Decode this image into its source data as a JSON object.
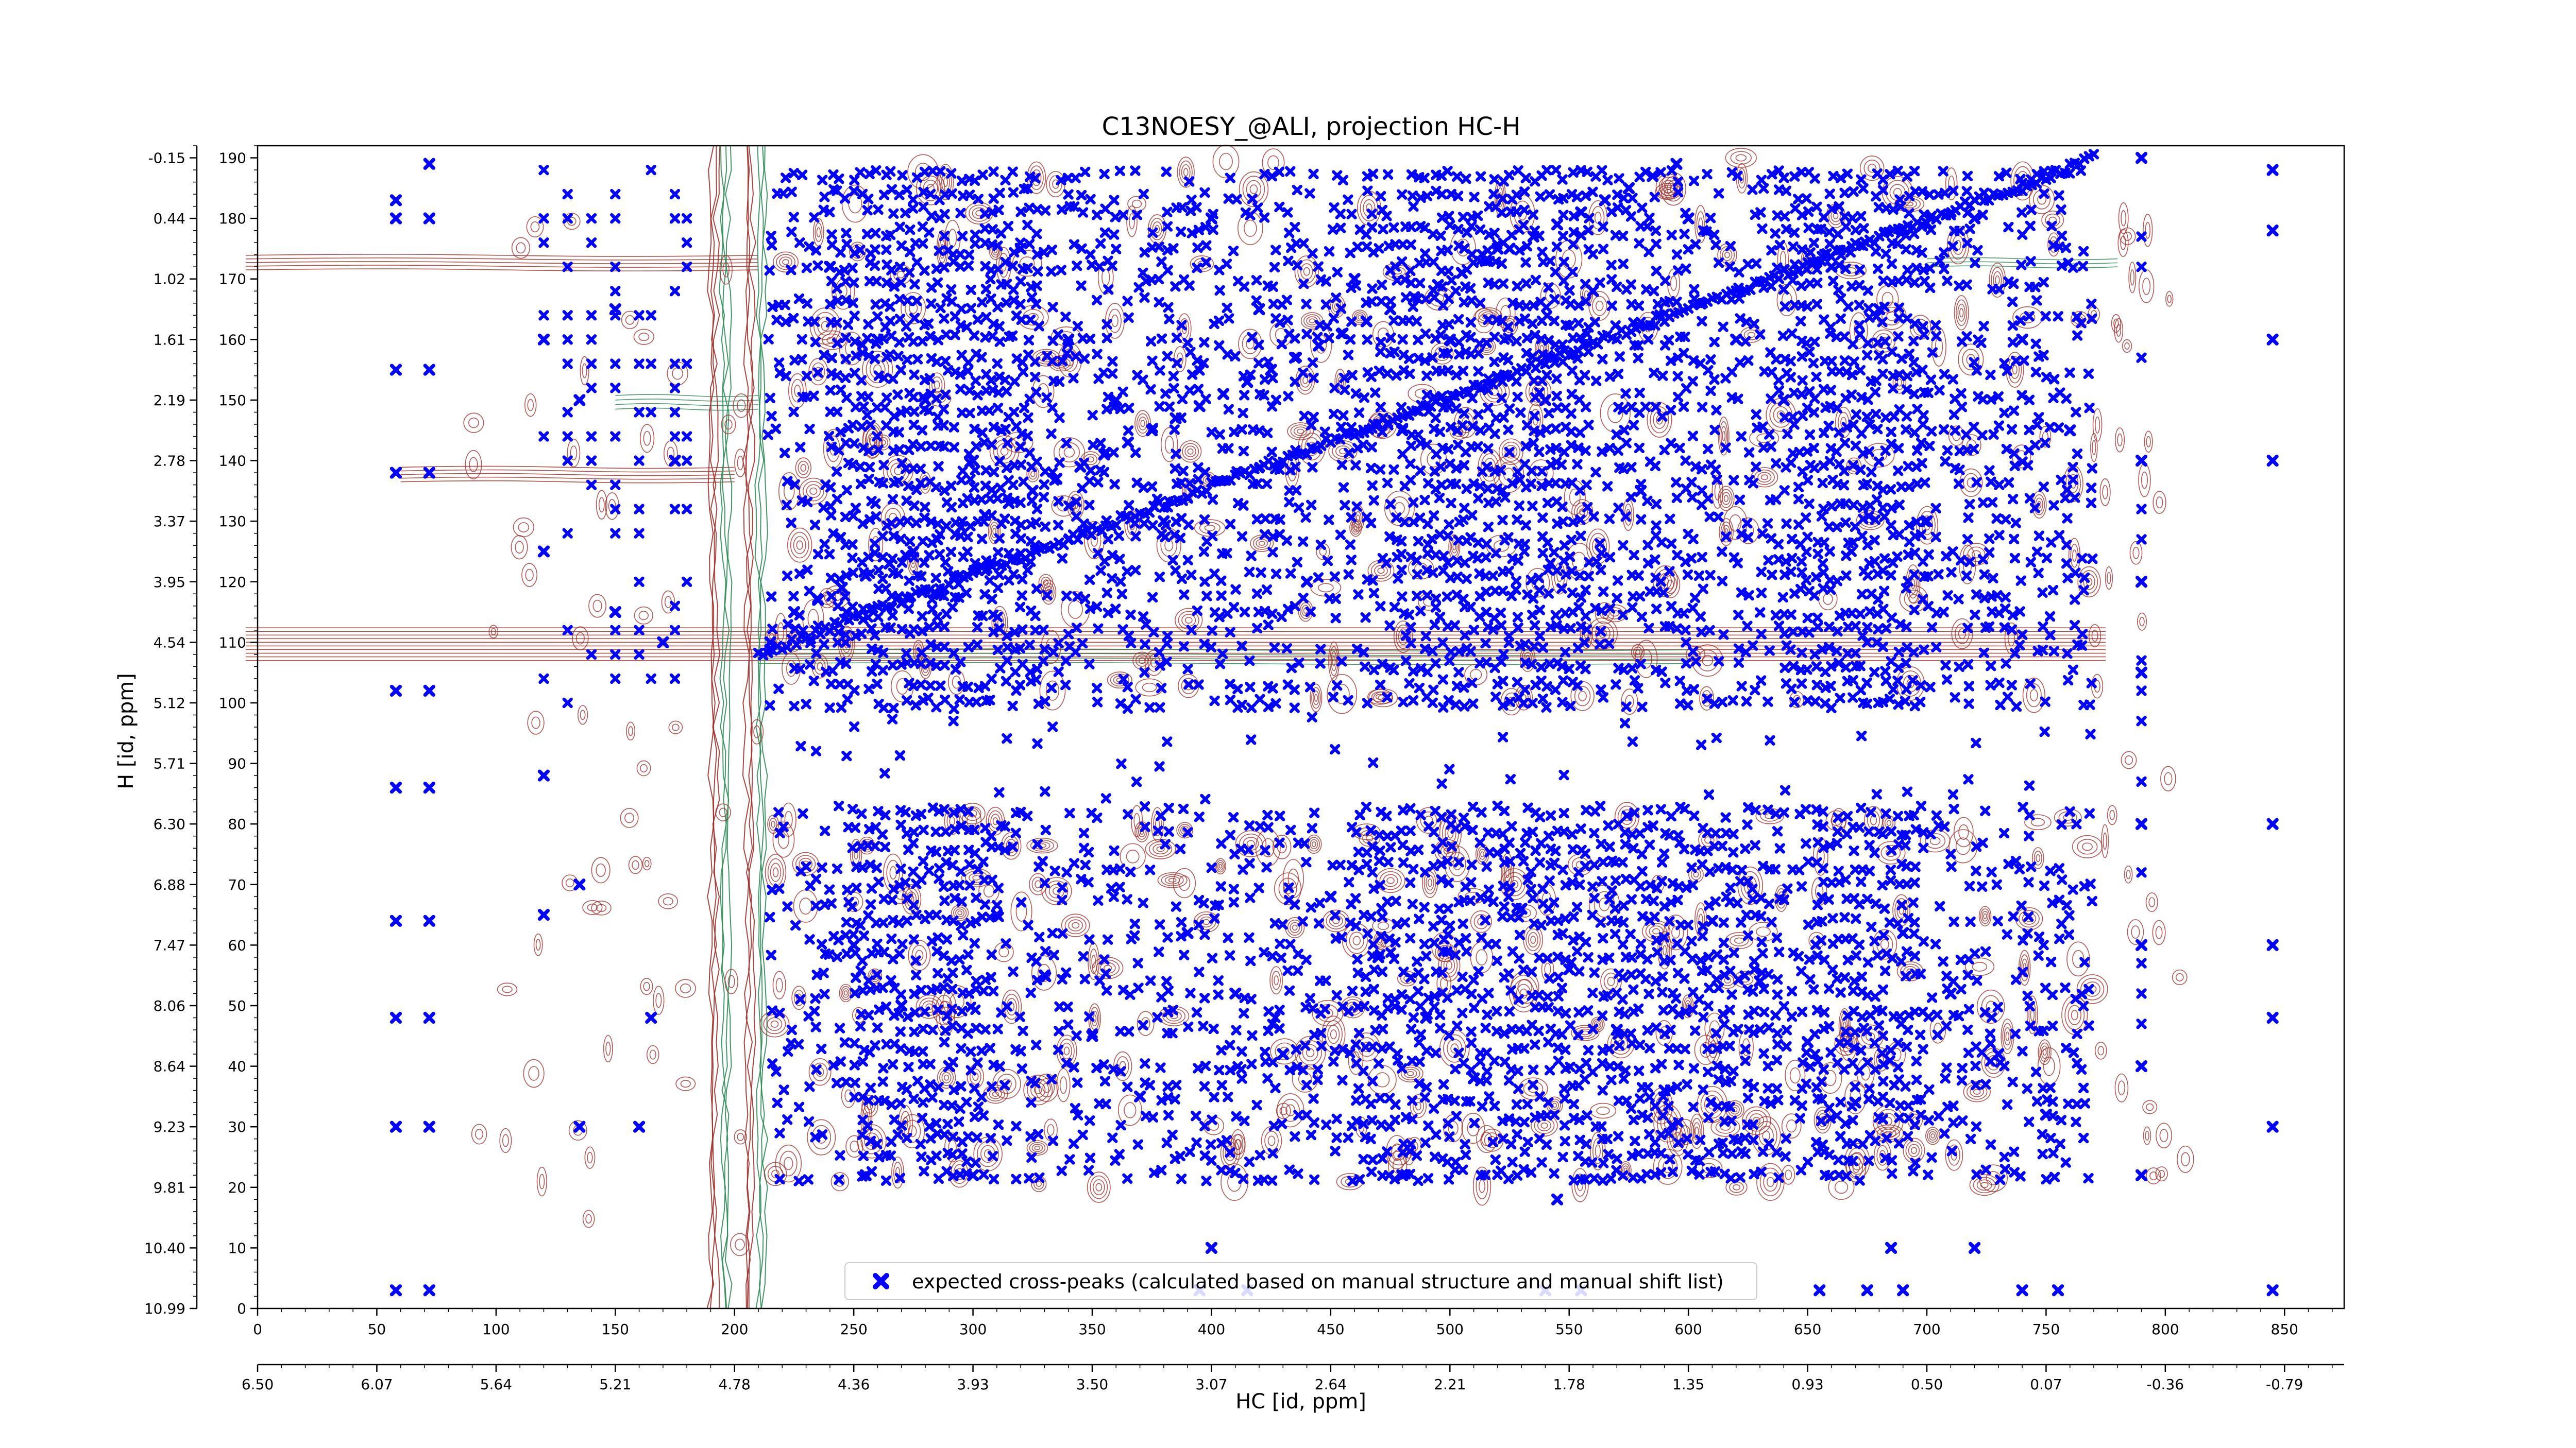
{
  "chart_data": {
    "type": "scatter",
    "title": "C13NOESY_@ALI, projection HC-H",
    "xlabel": "HC [id, ppm]",
    "ylabel": "H [id, ppm]",
    "xlim": [
      0,
      875
    ],
    "ylim": [
      0,
      192
    ],
    "x_ticks": [
      0,
      50,
      100,
      150,
      200,
      250,
      300,
      350,
      400,
      450,
      500,
      550,
      600,
      650,
      700,
      750,
      800,
      850
    ],
    "x_ppm_ticks": [
      "6.50",
      "6.07",
      "5.64",
      "5.21",
      "4.78",
      "4.36",
      "3.93",
      "3.50",
      "3.07",
      "2.64",
      "2.21",
      "1.78",
      "1.35",
      "0.93",
      "0.50",
      "0.07",
      "-0.36",
      "-0.79"
    ],
    "y_ticks": [
      0,
      10,
      20,
      30,
      40,
      50,
      60,
      70,
      80,
      90,
      100,
      110,
      120,
      130,
      140,
      150,
      160,
      170,
      180,
      190
    ],
    "y_ppm_ticks": [
      "10.99",
      "10.40",
      "9.81",
      "9.23",
      "8.64",
      "8.06",
      "7.47",
      "6.88",
      "6.30",
      "5.71",
      "5.12",
      "4.54",
      "3.95",
      "3.37",
      "2.78",
      "2.19",
      "1.61",
      "1.02",
      "0.44",
      "-0.15"
    ],
    "grid": false,
    "legend_position": "bottom-center",
    "series": [
      {
        "name": "expected cross-peaks (calculated based on manual structure and manual shift list)",
        "marker": "X",
        "color": "#0000ff",
        "points": [
          [
            58,
            3
          ],
          [
            72,
            3
          ],
          [
            58,
            30
          ],
          [
            72,
            30
          ],
          [
            58,
            48
          ],
          [
            72,
            48
          ],
          [
            58,
            64
          ],
          [
            72,
            64
          ],
          [
            58,
            86
          ],
          [
            72,
            86
          ],
          [
            58,
            102
          ],
          [
            72,
            102
          ],
          [
            58,
            138
          ],
          [
            72,
            138
          ],
          [
            58,
            155
          ],
          [
            72,
            155
          ],
          [
            58,
            180
          ],
          [
            72,
            180
          ],
          [
            72,
            189
          ],
          [
            58,
            183
          ],
          [
            120,
            65
          ],
          [
            120,
            88
          ],
          [
            120,
            125
          ],
          [
            120,
            160
          ],
          [
            135,
            30
          ],
          [
            135,
            70
          ],
          [
            135,
            150
          ],
          [
            150,
            115
          ],
          [
            150,
            165
          ],
          [
            160,
            30
          ],
          [
            165,
            48
          ],
          [
            170,
            110
          ],
          [
            175,
            140
          ],
          [
            215,
            110
          ],
          [
            225,
            115
          ],
          [
            235,
            117
          ],
          [
            245,
            119
          ],
          [
            255,
            121
          ],
          [
            265,
            123
          ],
          [
            275,
            125
          ],
          [
            285,
            127
          ],
          [
            295,
            129
          ],
          [
            305,
            131
          ],
          [
            315,
            133
          ],
          [
            325,
            135
          ],
          [
            335,
            137
          ],
          [
            345,
            139
          ],
          [
            355,
            141
          ],
          [
            365,
            143
          ],
          [
            375,
            145
          ],
          [
            385,
            147
          ],
          [
            395,
            149
          ],
          [
            405,
            151
          ],
          [
            415,
            153
          ],
          [
            425,
            155
          ],
          [
            435,
            157
          ],
          [
            445,
            159
          ],
          [
            455,
            161
          ],
          [
            465,
            163
          ],
          [
            475,
            165
          ],
          [
            485,
            167
          ],
          [
            495,
            169
          ],
          [
            505,
            171
          ],
          [
            515,
            173
          ],
          [
            525,
            175
          ],
          [
            535,
            177
          ],
          [
            545,
            179
          ],
          [
            555,
            181
          ],
          [
            565,
            183
          ],
          [
            575,
            185
          ],
          [
            585,
            187
          ],
          [
            595,
            189
          ],
          [
            240,
            172
          ],
          [
            260,
            160
          ],
          [
            280,
            150
          ],
          [
            300,
            140
          ],
          [
            320,
            175
          ],
          [
            340,
            160
          ],
          [
            360,
            150
          ],
          [
            380,
            130
          ],
          [
            400,
            180
          ],
          [
            420,
            165
          ],
          [
            440,
            120
          ],
          [
            460,
            170
          ],
          [
            480,
            145
          ],
          [
            500,
            160
          ],
          [
            520,
            175
          ],
          [
            540,
            150
          ],
          [
            560,
            168
          ],
          [
            580,
            135
          ],
          [
            600,
            180
          ],
          [
            620,
            160
          ],
          [
            640,
            150
          ],
          [
            660,
            172
          ],
          [
            680,
            165
          ],
          [
            700,
            130
          ],
          [
            720,
            180
          ],
          [
            740,
            160
          ],
          [
            760,
            145
          ],
          [
            250,
            60
          ],
          [
            270,
            50
          ],
          [
            290,
            40
          ],
          [
            310,
            65
          ],
          [
            330,
            55
          ],
          [
            350,
            45
          ],
          [
            370,
            35
          ],
          [
            390,
            62
          ],
          [
            410,
            52
          ],
          [
            430,
            42
          ],
          [
            450,
            68
          ],
          [
            470,
            58
          ],
          [
            490,
            48
          ],
          [
            510,
            38
          ],
          [
            530,
            66
          ],
          [
            550,
            56
          ],
          [
            570,
            46
          ],
          [
            590,
            36
          ],
          [
            610,
            64
          ],
          [
            630,
            54
          ],
          [
            650,
            44
          ],
          [
            670,
            34
          ],
          [
            690,
            62
          ],
          [
            710,
            52
          ],
          [
            730,
            42
          ],
          [
            750,
            32
          ],
          [
            400,
            10
          ],
          [
            480,
            22
          ],
          [
            545,
            18
          ],
          [
            685,
            10
          ],
          [
            720,
            10
          ],
          [
            255,
            22
          ],
          [
            300,
            22
          ],
          [
            395,
            3
          ],
          [
            415,
            3
          ],
          [
            540,
            3
          ],
          [
            555,
            3
          ],
          [
            655,
            3
          ],
          [
            675,
            3
          ],
          [
            690,
            3
          ],
          [
            740,
            3
          ],
          [
            755,
            3
          ],
          [
            790,
            190
          ],
          [
            790,
            140
          ],
          [
            790,
            120
          ],
          [
            790,
            105
          ],
          [
            790,
            80
          ],
          [
            790,
            60
          ],
          [
            790,
            40
          ],
          [
            790,
            22
          ],
          [
            845,
            3
          ],
          [
            845,
            30
          ],
          [
            845,
            48
          ],
          [
            845,
            60
          ],
          [
            845,
            80
          ],
          [
            845,
            140
          ],
          [
            845,
            160
          ],
          [
            845,
            178
          ],
          [
            845,
            188
          ]
        ]
      }
    ],
    "contour_colors": {
      "positive": "#a0302a",
      "negative": "#2e8b57"
    }
  }
}
